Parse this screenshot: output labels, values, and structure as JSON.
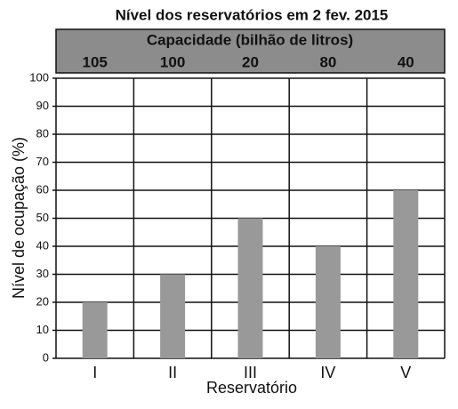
{
  "chart_data": {
    "type": "bar",
    "title": "Nível dos reservatórios em 2 fev. 2015",
    "capacity_label": "Capacidade (bilhão de litros)",
    "capacities": [
      105,
      100,
      20,
      80,
      40
    ],
    "categories": [
      "I",
      "II",
      "III",
      "IV",
      "V"
    ],
    "values": [
      20,
      30,
      50,
      40,
      60
    ],
    "color": "#999999",
    "ylim": [
      0,
      100
    ],
    "yticks": [
      0,
      10,
      20,
      30,
      40,
      50,
      60,
      70,
      80,
      90,
      100
    ],
    "grid": true,
    "xlabel": "Reservatório",
    "ylabel": "Nível de ocupação (%)"
  }
}
